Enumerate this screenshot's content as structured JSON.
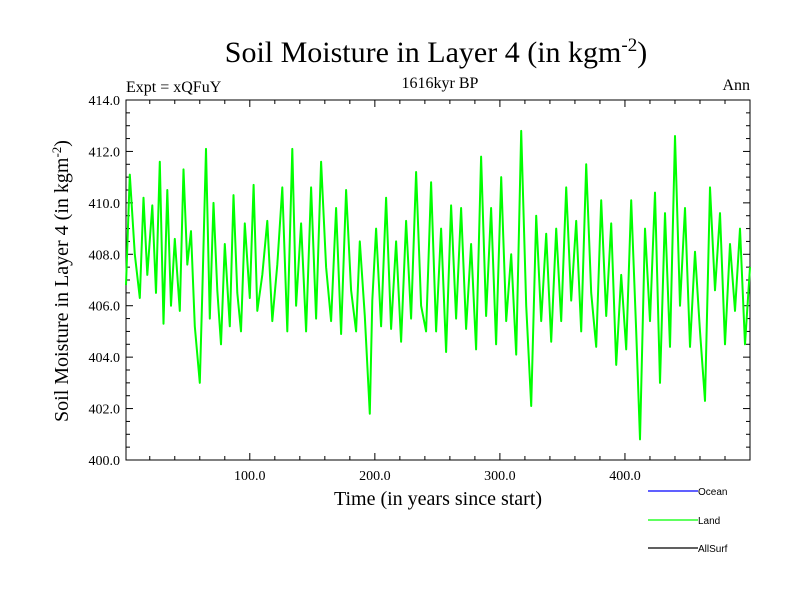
{
  "chart_data": {
    "type": "line",
    "title": "Soil Moisture in Layer 4 (in kgm",
    "title_sup": "-2",
    "title_end": ")",
    "left_label": "Expt = xQFuY",
    "center_label": "1616kyr BP",
    "right_label": "Ann",
    "xlabel": "Time (in years since start)",
    "ylabel": "Soil Moisture in Layer 4 (in kgm",
    "ylabel_sup": "-2",
    "ylabel_end": ")",
    "xlim": [
      1,
      500
    ],
    "ylim": [
      400.0,
      414.0
    ],
    "x_ticks": [
      {
        "value": 100,
        "label": "100.0"
      },
      {
        "value": 200,
        "label": "200.0"
      },
      {
        "value": 300,
        "label": "300.0"
      },
      {
        "value": 400,
        "label": "400.0"
      }
    ],
    "y_ticks": [
      {
        "value": 400,
        "label": "400.0"
      },
      {
        "value": 402,
        "label": "402.0"
      },
      {
        "value": 404,
        "label": "404.0"
      },
      {
        "value": 406,
        "label": "406.0"
      },
      {
        "value": 408,
        "label": "408.0"
      },
      {
        "value": 410,
        "label": "410.0"
      },
      {
        "value": 412,
        "label": "412.0"
      },
      {
        "value": 414,
        "label": "414.0"
      }
    ],
    "series": [
      {
        "name": "Ocean",
        "color": "#0000ff",
        "values": []
      },
      {
        "name": "Land",
        "color": "#00ff00",
        "x": [
          1,
          4,
          8,
          12,
          15,
          18,
          22,
          25,
          28,
          31,
          34,
          37,
          40,
          44,
          47,
          50,
          53,
          56,
          60,
          62,
          65,
          68,
          71,
          74,
          77,
          80,
          84,
          87,
          90,
          93,
          96,
          100,
          103,
          106,
          110,
          114,
          118,
          122,
          126,
          130,
          134,
          137,
          141,
          145,
          149,
          153,
          157,
          161,
          165,
          169,
          173,
          177,
          181,
          185,
          188,
          192,
          196,
          198,
          201,
          205,
          209,
          213,
          217,
          221,
          225,
          229,
          233,
          237,
          241,
          245,
          249,
          253,
          257,
          261,
          265,
          269,
          273,
          277,
          281,
          285,
          289,
          293,
          297,
          301,
          305,
          309,
          313,
          317,
          321,
          325,
          329,
          333,
          337,
          341,
          345,
          349,
          353,
          357,
          361,
          365,
          369,
          373,
          377,
          381,
          385,
          389,
          393,
          397,
          401,
          405,
          409,
          412,
          416,
          420,
          424,
          428,
          432,
          436,
          440,
          444,
          448,
          452,
          456,
          460,
          464,
          468,
          472,
          476,
          480,
          484,
          488,
          492,
          496,
          500
        ],
        "values": [
          406.8,
          411.1,
          408.0,
          406.3,
          410.2,
          407.2,
          409.9,
          406.5,
          411.6,
          405.3,
          410.5,
          406.0,
          408.6,
          405.8,
          411.3,
          407.6,
          408.9,
          405.2,
          403.0,
          406.5,
          412.1,
          405.5,
          410.0,
          406.6,
          404.5,
          408.4,
          405.2,
          410.3,
          406.5,
          405.0,
          409.2,
          406.3,
          410.7,
          405.8,
          407.2,
          409.3,
          405.4,
          407.6,
          410.6,
          405.0,
          412.1,
          406.0,
          409.2,
          405.0,
          410.6,
          405.5,
          411.6,
          407.5,
          405.4,
          409.8,
          404.9,
          410.5,
          406.6,
          405.0,
          408.5,
          405.6,
          401.8,
          406.2,
          409.0,
          405.2,
          410.2,
          405.1,
          408.5,
          404.6,
          409.3,
          405.5,
          411.2,
          406.0,
          405.0,
          410.8,
          405.0,
          409.0,
          404.2,
          409.9,
          405.5,
          409.8,
          405.1,
          408.4,
          404.3,
          411.8,
          405.6,
          409.8,
          404.5,
          411.0,
          405.4,
          408.0,
          404.1,
          412.8,
          406.0,
          402.1,
          409.5,
          405.4,
          408.8,
          404.6,
          409.0,
          405.4,
          410.6,
          406.2,
          409.3,
          405.0,
          411.5,
          406.5,
          404.4,
          410.1,
          405.6,
          409.2,
          403.7,
          407.2,
          404.3,
          410.1,
          405.0,
          400.8,
          409.0,
          405.4,
          410.4,
          403.0,
          409.6,
          404.4,
          412.6,
          406.0,
          409.8,
          404.4,
          408.1,
          405.0,
          402.3,
          410.6,
          406.6,
          409.6,
          404.5,
          408.4,
          405.8,
          409.0,
          404.5,
          407.5
        ]
      },
      {
        "name": "AllSurf",
        "color": "#000000",
        "values": []
      }
    ],
    "legend_position": "bottom-right"
  }
}
